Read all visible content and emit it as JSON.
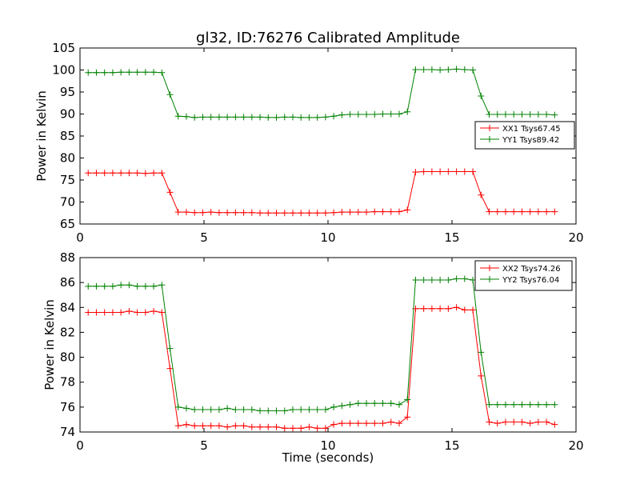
{
  "figure": {
    "title": "gl32, ID:76276 Calibrated Amplitude"
  },
  "chart_data": [
    {
      "type": "line",
      "ylabel": "Power in Kelvin",
      "xlabel": "",
      "xlim": [
        0,
        20
      ],
      "ylim": [
        65,
        105
      ],
      "xticks": [
        0,
        5,
        10,
        15,
        20
      ],
      "yticks": [
        65,
        70,
        75,
        80,
        85,
        90,
        95,
        100,
        105
      ],
      "grid": false,
      "legend_position": "center-right",
      "x": [
        0.33,
        0.66,
        0.99,
        1.32,
        1.65,
        1.98,
        2.31,
        2.64,
        2.97,
        3.3,
        3.63,
        3.96,
        4.29,
        4.62,
        4.95,
        5.28,
        5.61,
        5.94,
        6.27,
        6.6,
        6.93,
        7.26,
        7.59,
        7.92,
        8.25,
        8.58,
        8.91,
        9.24,
        9.57,
        9.9,
        10.23,
        10.56,
        10.89,
        11.22,
        11.55,
        11.88,
        12.21,
        12.54,
        12.87,
        13.2,
        13.53,
        13.86,
        14.19,
        14.52,
        14.85,
        15.18,
        15.51,
        15.84,
        16.17,
        16.5,
        16.83,
        17.16,
        17.49,
        17.82,
        18.15,
        18.48,
        18.81,
        19.14
      ],
      "series": [
        {
          "name": "XX1 Tsys67.45",
          "color": "#ff0000",
          "values": [
            76.6,
            76.6,
            76.6,
            76.6,
            76.6,
            76.6,
            76.6,
            76.5,
            76.6,
            76.6,
            72.2,
            67.7,
            67.7,
            67.6,
            67.6,
            67.7,
            67.6,
            67.6,
            67.6,
            67.6,
            67.6,
            67.5,
            67.5,
            67.5,
            67.5,
            67.5,
            67.5,
            67.5,
            67.5,
            67.5,
            67.6,
            67.7,
            67.7,
            67.7,
            67.7,
            67.8,
            67.8,
            67.8,
            67.8,
            68.2,
            76.8,
            76.9,
            76.9,
            76.9,
            76.9,
            76.9,
            76.9,
            76.9,
            71.6,
            67.8,
            67.8,
            67.8,
            67.8,
            67.8,
            67.8,
            67.8,
            67.8,
            67.8
          ]
        },
        {
          "name": "YY1 Tsys89.42",
          "color": "#008000",
          "values": [
            99.4,
            99.4,
            99.4,
            99.4,
            99.5,
            99.5,
            99.5,
            99.5,
            99.5,
            99.4,
            94.4,
            89.5,
            89.4,
            89.2,
            89.3,
            89.3,
            89.3,
            89.3,
            89.3,
            89.3,
            89.3,
            89.3,
            89.2,
            89.2,
            89.3,
            89.3,
            89.2,
            89.2,
            89.2,
            89.3,
            89.5,
            89.8,
            89.9,
            89.9,
            89.9,
            89.9,
            90.0,
            90.0,
            90.0,
            90.5,
            100.1,
            100.1,
            100.1,
            100.0,
            100.1,
            100.2,
            100.1,
            100.0,
            94.1,
            89.9,
            89.9,
            89.9,
            89.9,
            89.9,
            89.9,
            89.9,
            89.9,
            89.8
          ]
        }
      ]
    },
    {
      "type": "line",
      "ylabel": "Power in Kelvin",
      "xlabel": "Time (seconds)",
      "xlim": [
        0,
        20
      ],
      "ylim": [
        74,
        88
      ],
      "xticks": [
        0,
        5,
        10,
        15,
        20
      ],
      "yticks": [
        74,
        76,
        78,
        80,
        82,
        84,
        86,
        88
      ],
      "grid": false,
      "legend_position": "top-right",
      "x": [
        0.33,
        0.66,
        0.99,
        1.32,
        1.65,
        1.98,
        2.31,
        2.64,
        2.97,
        3.3,
        3.63,
        3.96,
        4.29,
        4.62,
        4.95,
        5.28,
        5.61,
        5.94,
        6.27,
        6.6,
        6.93,
        7.26,
        7.59,
        7.92,
        8.25,
        8.58,
        8.91,
        9.24,
        9.57,
        9.9,
        10.23,
        10.56,
        10.89,
        11.22,
        11.55,
        11.88,
        12.21,
        12.54,
        12.87,
        13.2,
        13.53,
        13.86,
        14.19,
        14.52,
        14.85,
        15.18,
        15.51,
        15.84,
        16.17,
        16.5,
        16.83,
        17.16,
        17.49,
        17.82,
        18.15,
        18.48,
        18.81,
        19.14
      ],
      "series": [
        {
          "name": "XX2 Tsys74.26",
          "color": "#ff0000",
          "values": [
            83.6,
            83.6,
            83.6,
            83.6,
            83.6,
            83.7,
            83.6,
            83.6,
            83.7,
            83.6,
            79.1,
            74.5,
            74.6,
            74.5,
            74.5,
            74.5,
            74.5,
            74.4,
            74.5,
            74.5,
            74.4,
            74.4,
            74.4,
            74.4,
            74.3,
            74.3,
            74.3,
            74.4,
            74.3,
            74.3,
            74.6,
            74.7,
            74.7,
            74.7,
            74.7,
            74.7,
            74.7,
            74.8,
            74.7,
            75.2,
            83.9,
            83.9,
            83.9,
            83.9,
            83.9,
            84.0,
            83.8,
            83.8,
            78.5,
            74.8,
            74.7,
            74.8,
            74.8,
            74.8,
            74.7,
            74.8,
            74.8,
            74.6
          ]
        },
        {
          "name": "YY2 Tsys76.04",
          "color": "#008000",
          "values": [
            85.7,
            85.7,
            85.7,
            85.7,
            85.8,
            85.8,
            85.7,
            85.7,
            85.7,
            85.8,
            80.7,
            76.0,
            75.9,
            75.8,
            75.8,
            75.8,
            75.8,
            75.9,
            75.8,
            75.8,
            75.8,
            75.7,
            75.7,
            75.7,
            75.7,
            75.8,
            75.8,
            75.8,
            75.8,
            75.8,
            76.0,
            76.1,
            76.2,
            76.3,
            76.3,
            76.3,
            76.3,
            76.3,
            76.2,
            76.6,
            86.2,
            86.2,
            86.2,
            86.2,
            86.2,
            86.3,
            86.3,
            86.2,
            80.4,
            76.2,
            76.2,
            76.2,
            76.2,
            76.2,
            76.2,
            76.2,
            76.2,
            76.2
          ]
        }
      ]
    }
  ]
}
